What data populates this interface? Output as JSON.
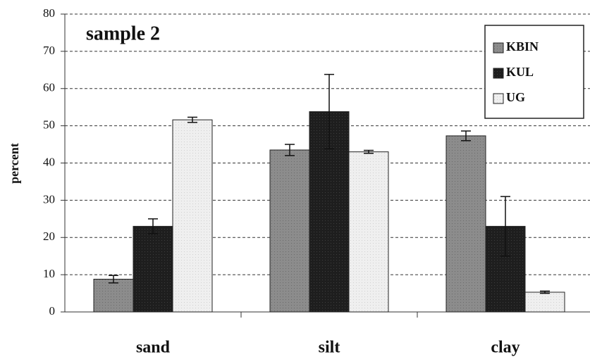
{
  "chart_data": {
    "type": "bar",
    "title": "sample 2",
    "y_label": "percent",
    "categories": [
      "sand",
      "silt",
      "clay"
    ],
    "series": [
      {
        "name": "KBIN",
        "color": "#8c8c8c",
        "values": [
          8.8,
          43.5,
          47.3
        ],
        "errors": [
          1,
          1.5,
          1.3
        ]
      },
      {
        "name": "KUL",
        "color": "#1e1e1e",
        "values": [
          23,
          53.8,
          23
        ],
        "errors": [
          2,
          10,
          8
        ]
      },
      {
        "name": "UG",
        "color": "#efefef",
        "values": [
          51.6,
          43,
          5.3
        ],
        "errors": [
          0.7,
          0.4,
          0.3
        ]
      }
    ],
    "ylim": [
      0,
      80
    ],
    "yticks": [
      0,
      10,
      20,
      30,
      40,
      50,
      60,
      70,
      80
    ],
    "grid": true,
    "legend": "upper right"
  }
}
